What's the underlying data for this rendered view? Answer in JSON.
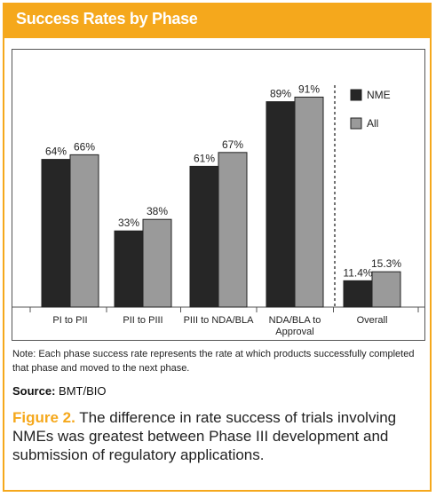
{
  "banner": {
    "title": "Success Rates by Phase"
  },
  "chart_data": {
    "type": "bar",
    "categories": [
      "PI to PII",
      "PII to PIII",
      "PIII to NDA/BLA",
      "NDA/BLA to\nApproval",
      "Overall"
    ],
    "series": [
      {
        "name": "NME",
        "values": [
          64,
          33,
          61,
          89,
          11.4
        ],
        "labels": [
          "64%",
          "33%",
          "61%",
          "89%",
          "11.4%"
        ],
        "color": "#262626"
      },
      {
        "name": "All",
        "values": [
          66,
          38,
          67,
          91,
          15.3
        ],
        "labels": [
          "66%",
          "38%",
          "67%",
          "91%",
          "15.3%"
        ],
        "color": "#9a9a9a"
      }
    ],
    "ylim": [
      0,
      100
    ],
    "grid": false,
    "legend": "top-right",
    "title": "",
    "xlabel": "",
    "ylabel": ""
  },
  "note": "Note: Each phase success rate represents the rate at which products successfully completed that phase and moved to the next phase.",
  "source": {
    "label": "Source:",
    "text": "BMT/BIO"
  },
  "caption": {
    "figure_label": "Figure 2.",
    "text": "The difference in rate success of trials involving NMEs was greatest between Phase III development and submission of regulatory applications."
  }
}
